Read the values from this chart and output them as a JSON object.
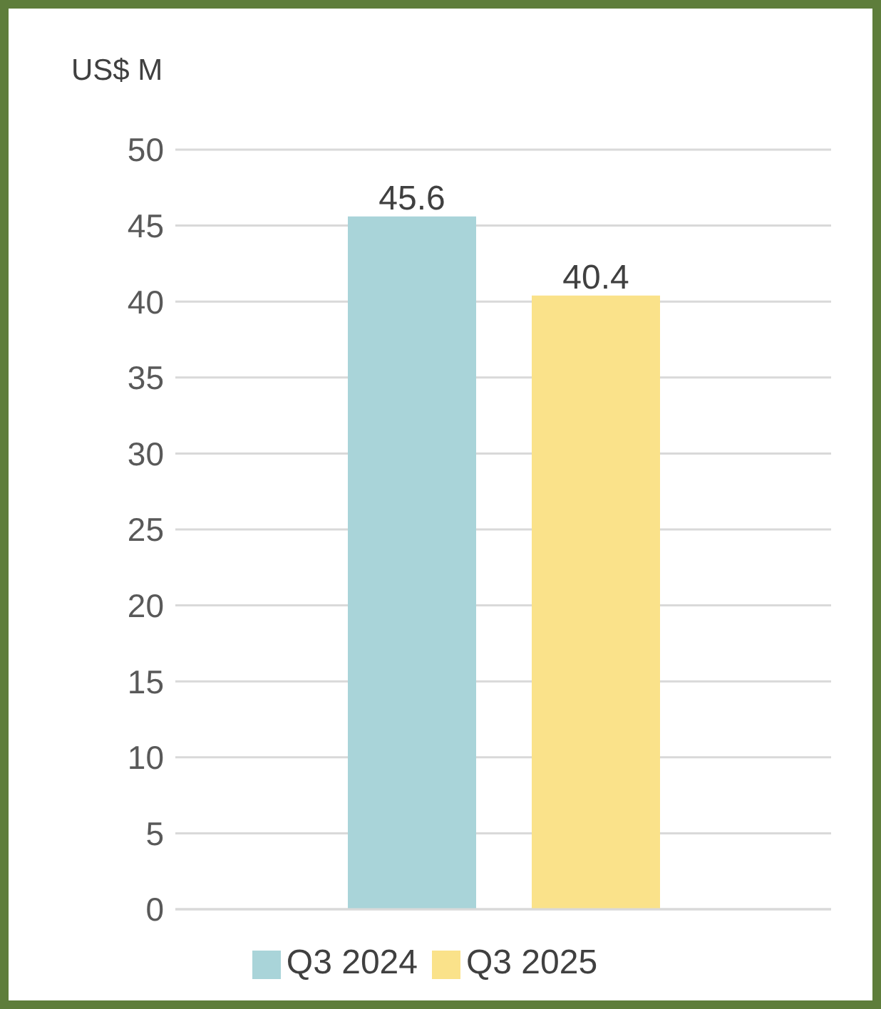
{
  "chart_data": {
    "type": "bar",
    "ylabel": "US$ M",
    "categories": [
      null
    ],
    "series": [
      {
        "name": "Q3 2024",
        "color": "#a9d4d9",
        "values": [
          45.6
        ]
      },
      {
        "name": "Q3 2025",
        "color": "#fae28a",
        "values": [
          40.4
        ]
      }
    ],
    "ylim": [
      0,
      50
    ],
    "yticks": [
      0,
      5,
      10,
      15,
      20,
      25,
      30,
      35,
      40,
      45,
      50
    ],
    "grid": "y",
    "legend": "bottom",
    "data_labels": true,
    "tick_labels": "y"
  }
}
